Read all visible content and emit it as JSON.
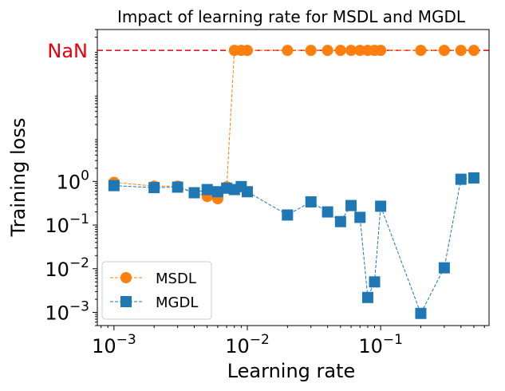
{
  "chart_data": {
    "type": "line",
    "title": "Impact of learning rate for MSDL and MGDL",
    "xlabel": "Learning rate",
    "ylabel": "Training loss",
    "xscale": "log",
    "yscale": "log",
    "xlim": [
      0.00075,
      0.65
    ],
    "ylim": [
      0.0005,
      3000
    ],
    "nan_value": 1000,
    "nan_label": "NaN",
    "nan_color": "#e8000b",
    "nan_line_color": "#e8000b",
    "x_ticks": [
      {
        "value": 0.001,
        "base": "10",
        "exp": "−3"
      },
      {
        "value": 0.01,
        "base": "10",
        "exp": "−2"
      },
      {
        "value": 0.1,
        "base": "10",
        "exp": "−1"
      }
    ],
    "y_ticks": [
      {
        "value": 0.001,
        "base": "10",
        "exp": "−3"
      },
      {
        "value": 0.01,
        "base": "10",
        "exp": "−2"
      },
      {
        "value": 0.1,
        "base": "10",
        "exp": "−1"
      },
      {
        "value": 1,
        "base": "10",
        "exp": "0"
      }
    ],
    "legend_position": "lower-left",
    "series": [
      {
        "name": "MSDL",
        "color": "#ff7f0e",
        "marker": "circle",
        "x": [
          0.001,
          0.002,
          0.003,
          0.004,
          0.005,
          0.006,
          0.007,
          0.008,
          0.009,
          0.01,
          0.02,
          0.03,
          0.04,
          0.05,
          0.06,
          0.07,
          0.08,
          0.09,
          0.1,
          0.2,
          0.3,
          0.4,
          0.5
        ],
        "y": [
          0.95,
          0.78,
          0.78,
          0.55,
          0.45,
          0.4,
          0.75,
          1000,
          1000,
          1000,
          1000,
          1000,
          1000,
          1000,
          1000,
          1000,
          1000,
          1000,
          1000,
          1000,
          1000,
          1000,
          1000
        ]
      },
      {
        "name": "MGDL",
        "color": "#1f77b4",
        "marker": "square",
        "x": [
          0.001,
          0.002,
          0.003,
          0.004,
          0.005,
          0.006,
          0.007,
          0.008,
          0.009,
          0.01,
          0.02,
          0.03,
          0.04,
          0.05,
          0.06,
          0.07,
          0.08,
          0.09,
          0.1,
          0.2,
          0.3,
          0.4,
          0.5
        ],
        "y": [
          0.8,
          0.72,
          0.74,
          0.55,
          0.65,
          0.58,
          0.7,
          0.65,
          0.76,
          0.58,
          0.17,
          0.34,
          0.2,
          0.12,
          0.28,
          0.15,
          0.0022,
          0.005,
          0.27,
          0.00095,
          0.0105,
          1.12,
          1.2
        ]
      }
    ]
  }
}
